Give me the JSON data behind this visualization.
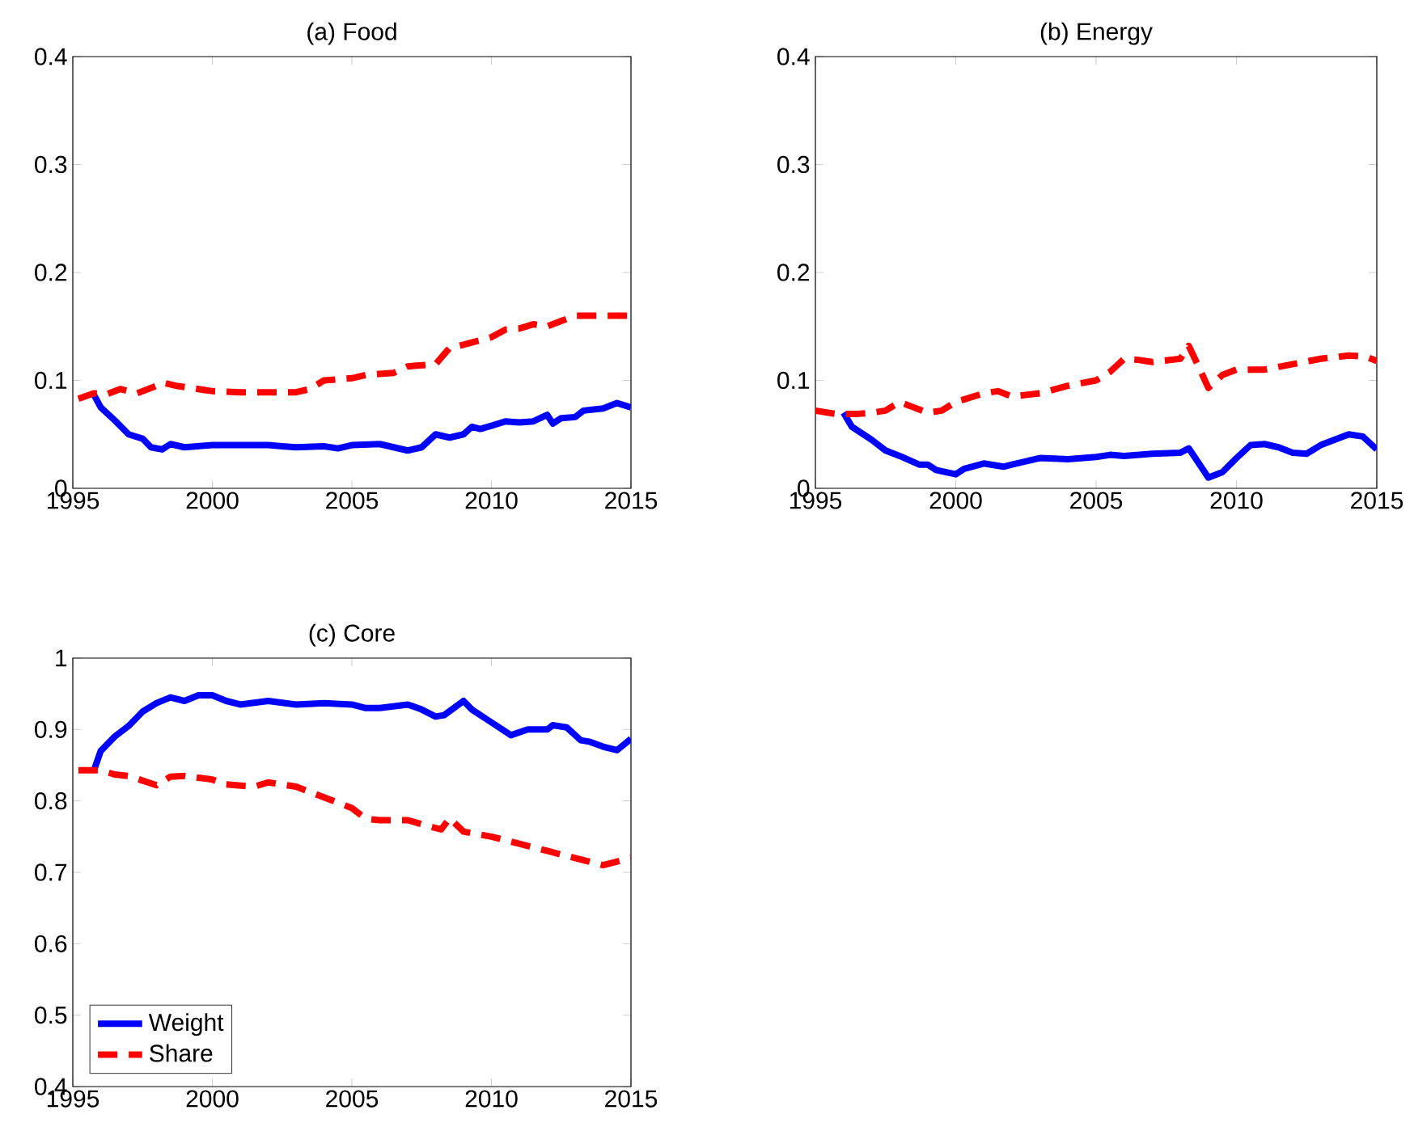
{
  "chart_data": [
    {
      "type": "line",
      "title": "(a) Food",
      "xlim": [
        1995,
        2015
      ],
      "xticks": [
        1995,
        2000,
        2005,
        2010,
        2015
      ],
      "ylim": [
        0,
        0.4
      ],
      "yticks": [
        0,
        0.1,
        0.2,
        0.3,
        0.4
      ],
      "grid": false,
      "legend": false,
      "series": [
        {
          "color": "#0000ff",
          "line_style": "solid",
          "x": [
            1995.75,
            1996,
            1996.5,
            1997,
            1997.5,
            1997.8,
            1998.2,
            1998.5,
            1999,
            2000,
            2001,
            2002,
            2002.5,
            2003,
            2004,
            2004.5,
            2005,
            2006,
            2006.5,
            2007,
            2007.5,
            2008,
            2008.5,
            2009,
            2009.3,
            2009.6,
            2010,
            2010.5,
            2011,
            2011.5,
            2012,
            2012.2,
            2012.5,
            2013,
            2013.3,
            2014,
            2014.5,
            2015
          ],
          "values": [
            0.087,
            0.075,
            0.063,
            0.05,
            0.046,
            0.038,
            0.036,
            0.041,
            0.038,
            0.04,
            0.04,
            0.04,
            0.039,
            0.038,
            0.039,
            0.037,
            0.04,
            0.041,
            0.038,
            0.035,
            0.038,
            0.05,
            0.047,
            0.05,
            0.057,
            0.055,
            0.058,
            0.062,
            0.061,
            0.062,
            0.068,
            0.06,
            0.065,
            0.066,
            0.072,
            0.074,
            0.079,
            0.075
          ]
        },
        {
          "color": "#ff0000",
          "line_style": "dashed",
          "x": [
            1995.2,
            1995.75,
            1996.2,
            1996.7,
            1997.3,
            1998,
            1998.2,
            1998.7,
            1999.5,
            2000,
            2001,
            2002,
            2003,
            2003.5,
            2004,
            2005,
            2005.5,
            2006.5,
            2007,
            2008,
            2008.5,
            2009,
            2010,
            2010.5,
            2011,
            2011.5,
            2012,
            2012.5,
            2013,
            2014,
            2015
          ],
          "values": [
            0.083,
            0.088,
            0.087,
            0.092,
            0.088,
            0.095,
            0.098,
            0.095,
            0.092,
            0.09,
            0.089,
            0.089,
            0.089,
            0.092,
            0.1,
            0.102,
            0.105,
            0.107,
            0.113,
            0.115,
            0.13,
            0.133,
            0.14,
            0.147,
            0.148,
            0.152,
            0.15,
            0.155,
            0.16,
            0.16,
            0.16
          ]
        }
      ]
    },
    {
      "type": "line",
      "title": "(b) Energy",
      "xlim": [
        1995,
        2015
      ],
      "xticks": [
        1995,
        2000,
        2005,
        2010,
        2015
      ],
      "ylim": [
        0,
        0.4
      ],
      "yticks": [
        0,
        0.1,
        0.2,
        0.3,
        0.4
      ],
      "grid": false,
      "legend": false,
      "series": [
        {
          "color": "#0000ff",
          "line_style": "solid",
          "x": [
            1996,
            1996.3,
            1997,
            1997.5,
            1998,
            1998.7,
            1999,
            1999.3,
            2000,
            2000.3,
            2001,
            2001.7,
            2002,
            2003,
            2004,
            2005,
            2005.5,
            2006,
            2007,
            2008,
            2008.3,
            2009,
            2009.5,
            2010,
            2010.5,
            2011,
            2011.5,
            2012,
            2012.5,
            2013,
            2014,
            2014.5,
            2015
          ],
          "values": [
            0.07,
            0.057,
            0.045,
            0.035,
            0.03,
            0.022,
            0.022,
            0.017,
            0.013,
            0.018,
            0.023,
            0.02,
            0.022,
            0.028,
            0.027,
            0.029,
            0.031,
            0.03,
            0.032,
            0.033,
            0.037,
            0.01,
            0.015,
            0.028,
            0.04,
            0.041,
            0.038,
            0.033,
            0.032,
            0.04,
            0.05,
            0.048,
            0.036
          ]
        },
        {
          "color": "#ff0000",
          "line_style": "dashed",
          "x": [
            1995,
            1995.7,
            1996.5,
            1997,
            1997.5,
            1998,
            1998.5,
            1999,
            1999.5,
            2000,
            2001,
            2001.5,
            2002,
            2003,
            2004,
            2005,
            2005.5,
            2006,
            2006.5,
            2007,
            2008,
            2008.3,
            2008.7,
            2009,
            2009.5,
            2010,
            2011,
            2012,
            2013,
            2014,
            2014.6,
            2015
          ],
          "values": [
            0.072,
            0.069,
            0.069,
            0.07,
            0.072,
            0.08,
            0.075,
            0.07,
            0.072,
            0.08,
            0.088,
            0.09,
            0.085,
            0.088,
            0.095,
            0.1,
            0.108,
            0.12,
            0.119,
            0.117,
            0.12,
            0.132,
            0.11,
            0.093,
            0.105,
            0.11,
            0.11,
            0.115,
            0.12,
            0.123,
            0.122,
            0.118
          ]
        }
      ]
    },
    {
      "type": "line",
      "title": "(c) Core",
      "xlim": [
        1995,
        2015
      ],
      "xticks": [
        1995,
        2000,
        2005,
        2010,
        2015
      ],
      "ylim": [
        0.4,
        1
      ],
      "yticks": [
        0.4,
        0.5,
        0.6,
        0.7,
        0.8,
        0.9,
        1
      ],
      "grid": false,
      "legend": "bottom left",
      "series": [
        {
          "name": "Weight",
          "color": "#0000ff",
          "line_style": "solid",
          "x": [
            1995.75,
            1996,
            1996.5,
            1997,
            1997.5,
            1998,
            1998.5,
            1999,
            1999.5,
            2000,
            2000.5,
            2001,
            2002,
            2003,
            2004,
            2005,
            2005.5,
            2006,
            2007,
            2007.5,
            2008,
            2008.3,
            2009,
            2009.3,
            2010,
            2010.7,
            2011.3,
            2012,
            2012.2,
            2012.7,
            2013.2,
            2013.5,
            2014,
            2014.5,
            2015
          ],
          "values": [
            0.842,
            0.87,
            0.89,
            0.905,
            0.925,
            0.937,
            0.945,
            0.94,
            0.948,
            0.948,
            0.94,
            0.935,
            0.94,
            0.935,
            0.937,
            0.935,
            0.93,
            0.93,
            0.935,
            0.928,
            0.918,
            0.92,
            0.94,
            0.928,
            0.91,
            0.892,
            0.9,
            0.9,
            0.906,
            0.903,
            0.885,
            0.883,
            0.876,
            0.871,
            0.887
          ]
        },
        {
          "name": "Share",
          "color": "#ff0000",
          "line_style": "dashed",
          "x": [
            1995.2,
            1996,
            1996.5,
            1997,
            1998,
            1998.5,
            1999,
            2000,
            2000.5,
            2001.5,
            2002,
            2003,
            2004,
            2005,
            2005.5,
            2006,
            2007,
            2008,
            2008.2,
            2008.5,
            2009,
            2010,
            2011,
            2012,
            2013,
            2014,
            2015
          ],
          "values": [
            0.843,
            0.843,
            0.837,
            0.835,
            0.822,
            0.834,
            0.835,
            0.83,
            0.823,
            0.82,
            0.826,
            0.82,
            0.805,
            0.79,
            0.775,
            0.773,
            0.773,
            0.762,
            0.76,
            0.776,
            0.757,
            0.75,
            0.74,
            0.73,
            0.72,
            0.71,
            0.72
          ]
        }
      ]
    }
  ]
}
